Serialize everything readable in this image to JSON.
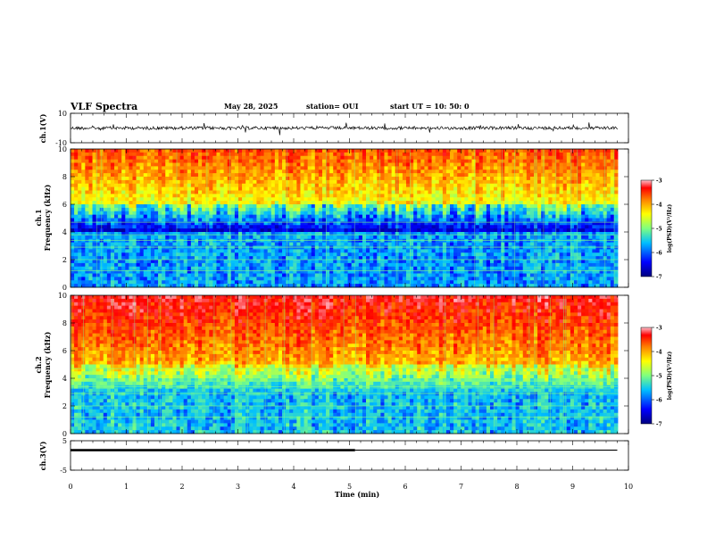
{
  "header": {
    "title": "VLF Spectra",
    "date": "May 28, 2025",
    "station": "station= OUI",
    "start": "start  UT  =  10: 50: 0"
  },
  "chart_data": [
    {
      "type": "line",
      "panel": "ch1-waveform",
      "ylabel": "ch.1(V)",
      "ylim": [
        -10,
        10
      ],
      "yticks": [
        "10",
        "-10"
      ],
      "xlim": [
        0,
        10
      ],
      "baseline_value": 0,
      "color": "#000000"
    },
    {
      "type": "heatmap",
      "panel": "ch1-spectrogram",
      "ylabel_lines": [
        "ch.1",
        "Frequency  (kHz)"
      ],
      "ylim": [
        0,
        10
      ],
      "yticks": [
        "0",
        "2",
        "4",
        "6",
        "8",
        "10"
      ],
      "xlim": [
        0,
        10
      ],
      "colorbar": {
        "label": "log(PSD)(V²/Hz)",
        "range": [
          -7,
          -3
        ],
        "ticks": [
          "-3",
          "-4",
          "-5",
          "-6",
          "-7"
        ]
      },
      "colormap": [
        "#00007f",
        "#0000ff",
        "#00bfff",
        "#7fff7f",
        "#ffff00",
        "#ff7f00",
        "#ff0000",
        "#ffc0cb"
      ]
    },
    {
      "type": "heatmap",
      "panel": "ch2-spectrogram",
      "ylabel_lines": [
        "ch.2",
        "Frequency  (kHz)"
      ],
      "ylim": [
        0,
        10
      ],
      "yticks": [
        "0",
        "2",
        "4",
        "6",
        "8",
        "10"
      ],
      "xlim": [
        0,
        10
      ],
      "colorbar": {
        "label": "log(PSD)(V²/Hz)",
        "range": [
          -7,
          -3
        ],
        "ticks": [
          "-3",
          "-4",
          "-5",
          "-6",
          "-7"
        ]
      },
      "colormap": [
        "#00007f",
        "#0000ff",
        "#00bfff",
        "#7fff7f",
        "#ffff00",
        "#ff7f00",
        "#ff0000",
        "#ffc0cb"
      ]
    },
    {
      "type": "line",
      "panel": "ch3-waveform",
      "ylabel": "ch.3(V)",
      "ylim": [
        -5,
        5
      ],
      "yticks": [
        "5",
        "-5"
      ],
      "xlim": [
        0,
        10
      ],
      "segments": [
        {
          "x": [
            0,
            5.1
          ],
          "y": 1.8
        },
        {
          "x": [
            5.1,
            9.8
          ],
          "y": 1.8
        }
      ],
      "color": "#000000"
    }
  ],
  "xaxis": {
    "label": "Time  (min)",
    "ticks": [
      "0",
      "1",
      "2",
      "3",
      "4",
      "5",
      "6",
      "7",
      "8",
      "9",
      "10"
    ]
  }
}
